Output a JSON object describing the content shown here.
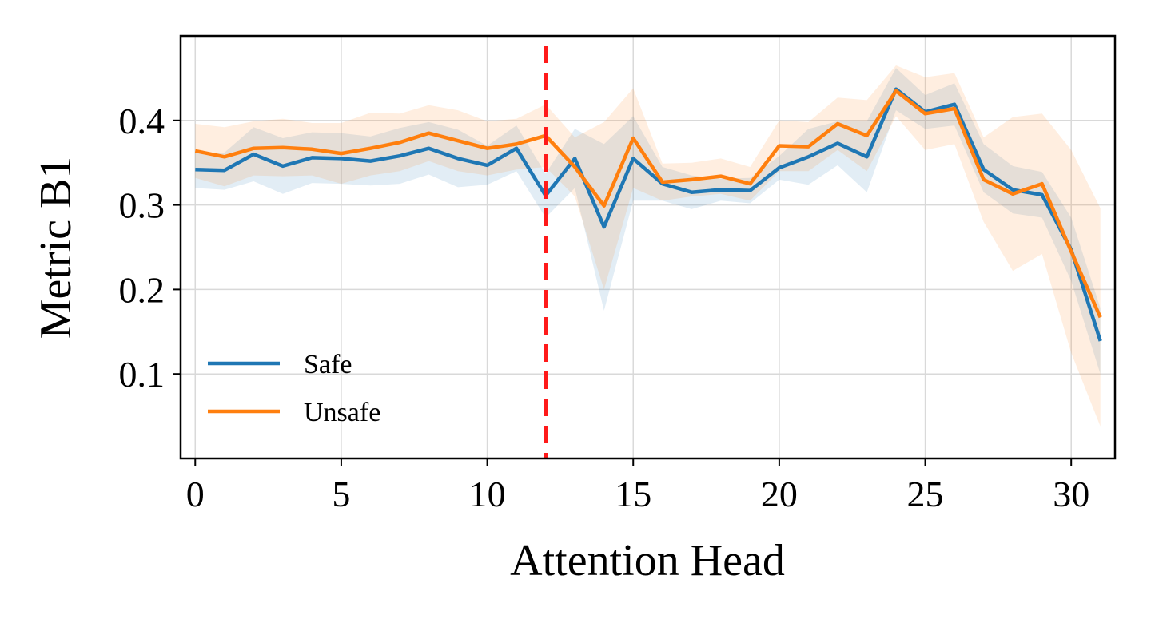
{
  "chart_data": {
    "type": "line",
    "title": "",
    "xlabel": "Attention Head",
    "ylabel": "Metric B1",
    "xlim": [
      -0.5,
      31.5
    ],
    "ylim": [
      0.0,
      0.5
    ],
    "xticks": [
      0,
      5,
      10,
      15,
      20,
      25,
      30
    ],
    "xtick_labels": [
      "0",
      "5",
      "10",
      "15",
      "20",
      "25",
      "30"
    ],
    "yticks": [
      0.1,
      0.2,
      0.3,
      0.4
    ],
    "ytick_labels": [
      "0.1",
      "0.2",
      "0.3",
      "0.4"
    ],
    "grid": true,
    "legend_position": "lower-left",
    "x": [
      0,
      1,
      2,
      3,
      4,
      5,
      6,
      7,
      8,
      9,
      10,
      11,
      12,
      13,
      14,
      15,
      16,
      17,
      18,
      19,
      20,
      21,
      22,
      23,
      24,
      25,
      26,
      27,
      28,
      29,
      30,
      31
    ],
    "series": [
      {
        "name": "Safe",
        "color": "#1f77b4",
        "values": [
          0.342,
          0.341,
          0.36,
          0.346,
          0.356,
          0.355,
          0.352,
          0.358,
          0.367,
          0.355,
          0.347,
          0.367,
          0.311,
          0.355,
          0.274,
          0.355,
          0.325,
          0.315,
          0.318,
          0.317,
          0.344,
          0.357,
          0.373,
          0.357,
          0.437,
          0.41,
          0.419,
          0.342,
          0.318,
          0.312,
          0.247,
          0.139
        ],
        "lower": [
          0.32,
          0.318,
          0.328,
          0.313,
          0.326,
          0.325,
          0.323,
          0.325,
          0.336,
          0.321,
          0.324,
          0.34,
          0.285,
          0.32,
          0.175,
          0.305,
          0.305,
          0.295,
          0.305,
          0.302,
          0.33,
          0.324,
          0.347,
          0.315,
          0.412,
          0.39,
          0.394,
          0.315,
          0.29,
          0.285,
          0.21,
          0.1
        ],
        "upper": [
          0.362,
          0.362,
          0.392,
          0.379,
          0.386,
          0.385,
          0.381,
          0.391,
          0.398,
          0.389,
          0.37,
          0.394,
          0.337,
          0.39,
          0.372,
          0.405,
          0.345,
          0.335,
          0.331,
          0.332,
          0.358,
          0.39,
          0.399,
          0.399,
          0.462,
          0.43,
          0.444,
          0.372,
          0.346,
          0.339,
          0.285,
          0.178
        ]
      },
      {
        "name": "Unsafe",
        "color": "#ff7f0e",
        "values": [
          0.364,
          0.357,
          0.367,
          0.368,
          0.366,
          0.361,
          0.367,
          0.374,
          0.385,
          0.376,
          0.367,
          0.372,
          0.382,
          0.345,
          0.299,
          0.379,
          0.327,
          0.33,
          0.334,
          0.325,
          0.37,
          0.369,
          0.396,
          0.382,
          0.435,
          0.408,
          0.414,
          0.33,
          0.313,
          0.325,
          0.245,
          0.167
        ],
        "lower": [
          0.332,
          0.322,
          0.335,
          0.334,
          0.335,
          0.325,
          0.335,
          0.34,
          0.352,
          0.34,
          0.335,
          0.342,
          0.345,
          0.31,
          0.2,
          0.32,
          0.305,
          0.31,
          0.313,
          0.305,
          0.34,
          0.34,
          0.365,
          0.34,
          0.405,
          0.365,
          0.372,
          0.28,
          0.222,
          0.242,
          0.125,
          0.038
        ],
        "upper": [
          0.396,
          0.392,
          0.399,
          0.402,
          0.397,
          0.397,
          0.409,
          0.408,
          0.418,
          0.412,
          0.399,
          0.402,
          0.419,
          0.38,
          0.398,
          0.438,
          0.349,
          0.35,
          0.355,
          0.345,
          0.4,
          0.398,
          0.427,
          0.424,
          0.465,
          0.451,
          0.456,
          0.38,
          0.404,
          0.408,
          0.365,
          0.296
        ]
      }
    ],
    "annotations": [
      {
        "type": "vertical-dashed-line",
        "x": 12,
        "color": "#ff1a1a"
      }
    ]
  }
}
